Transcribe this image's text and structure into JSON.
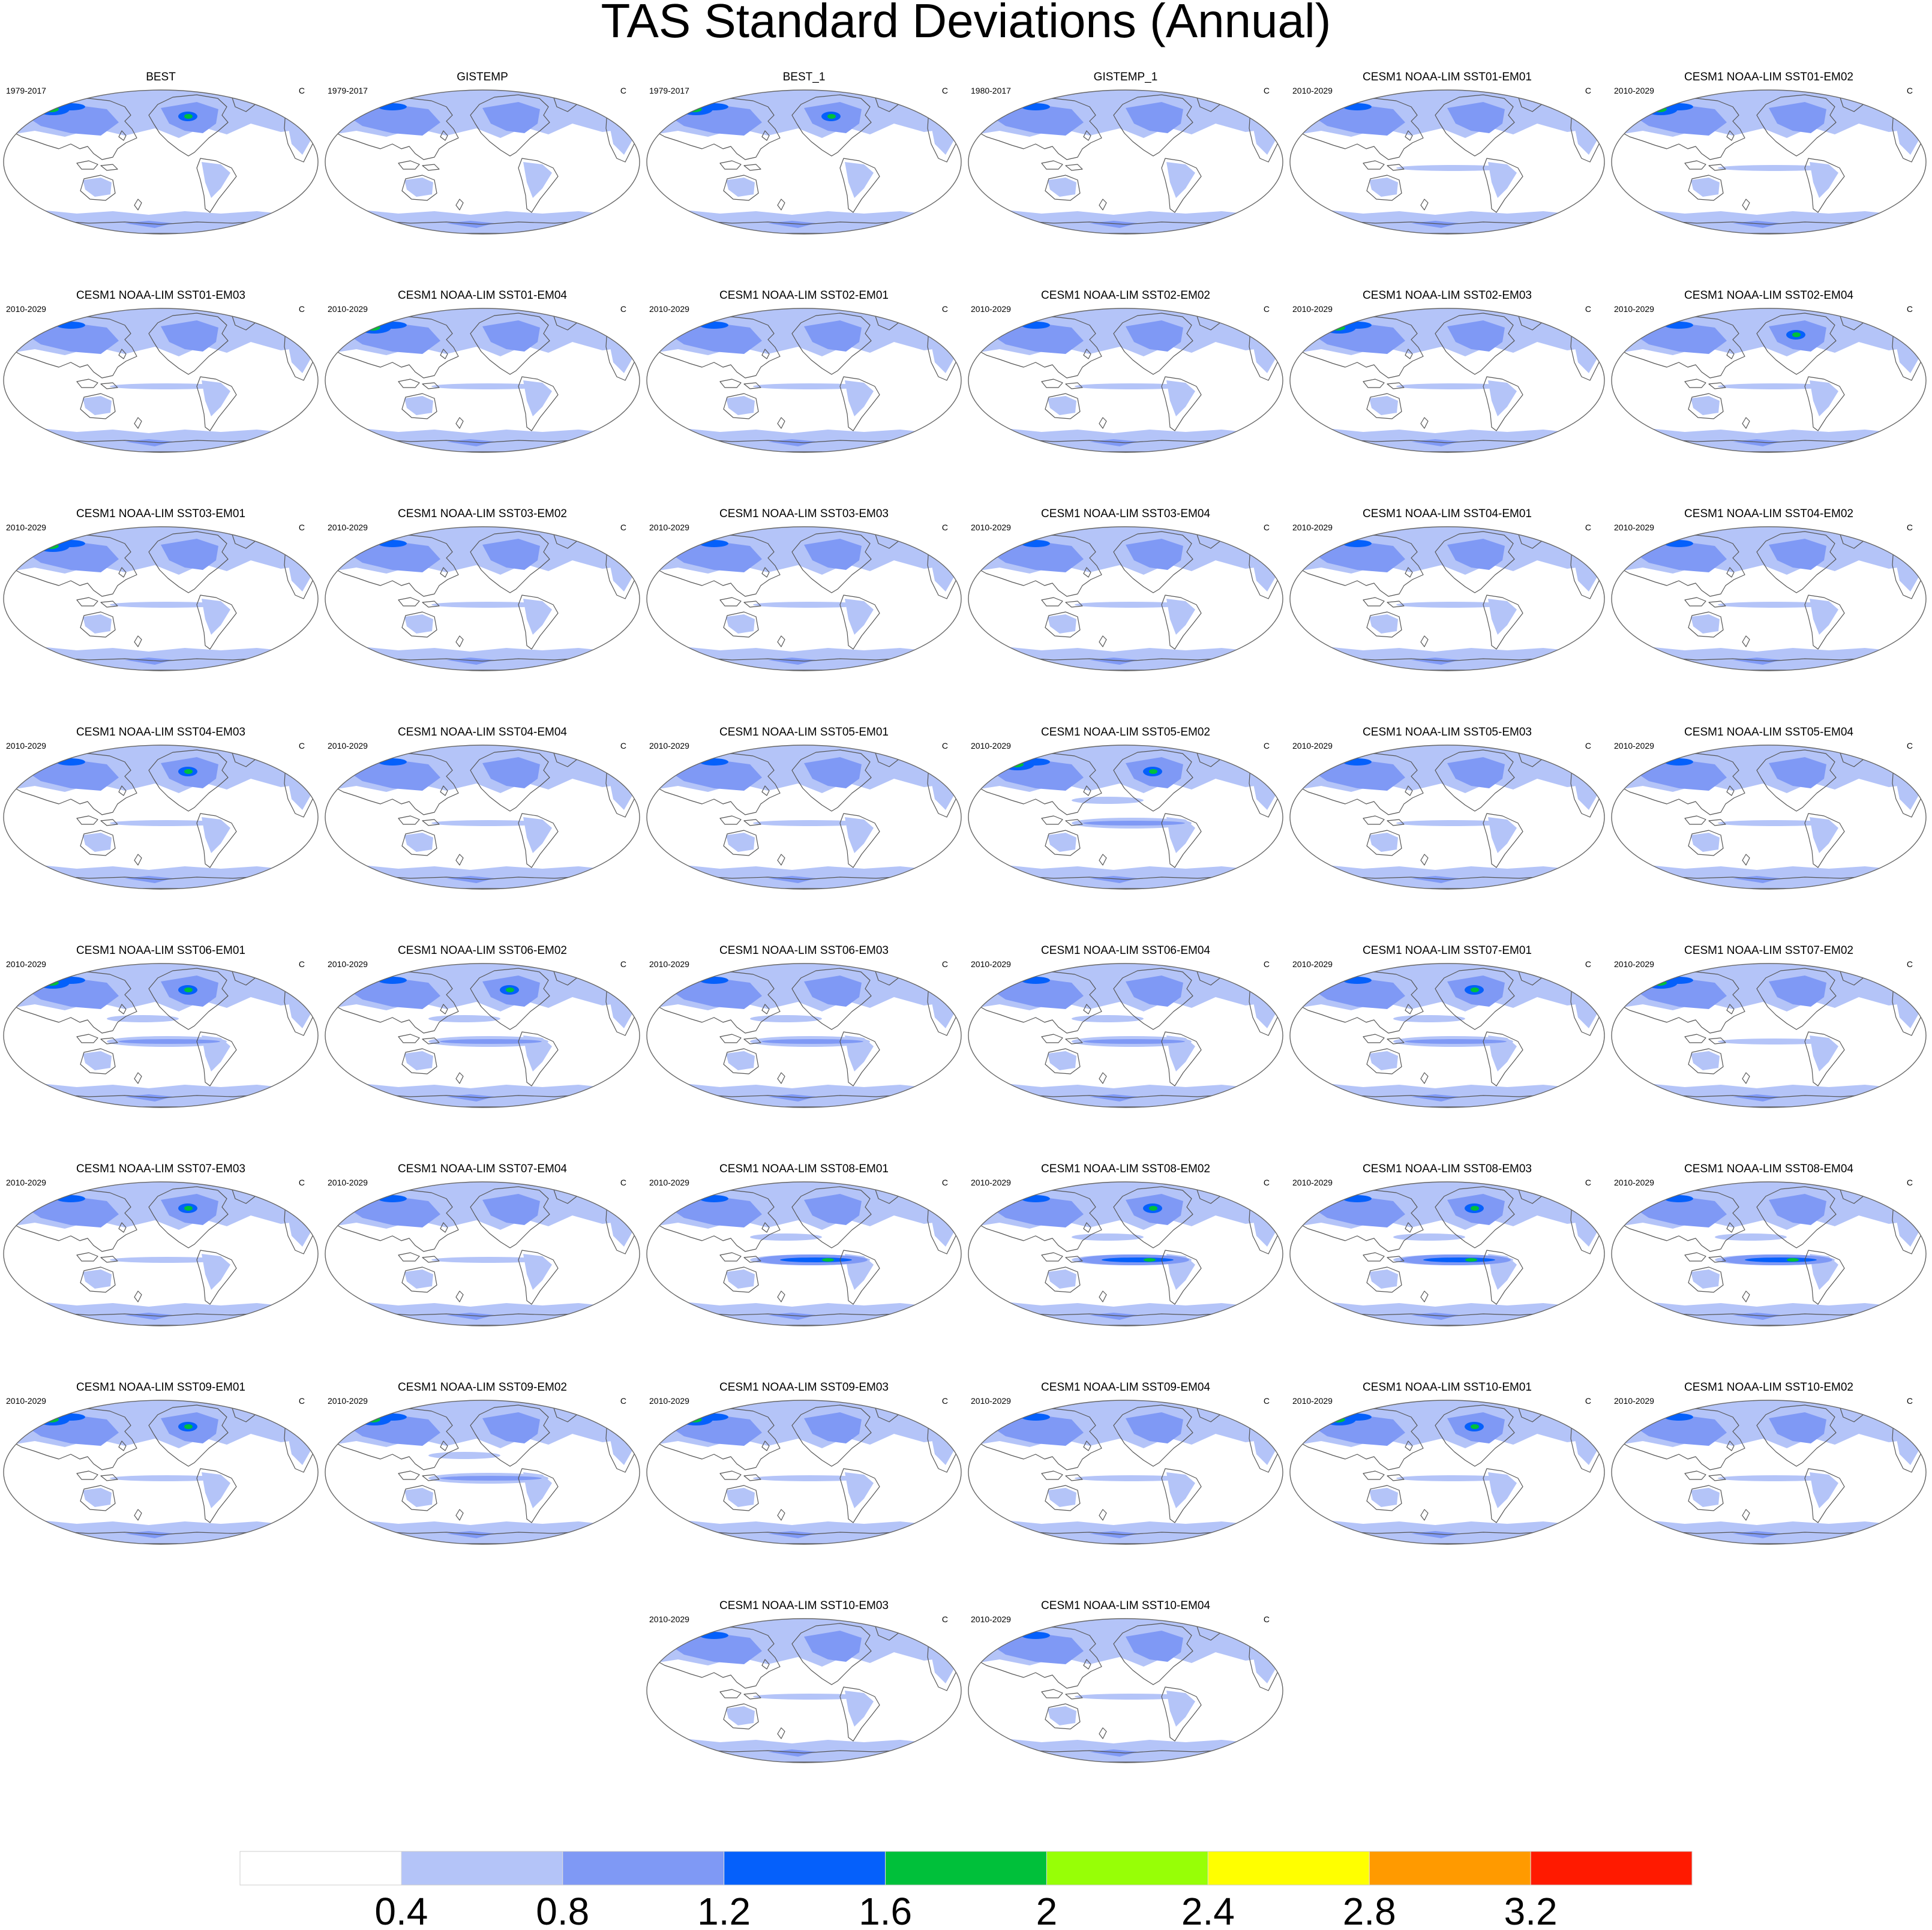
{
  "title": "TAS Standard Deviations (Annual)",
  "colors": {
    "bins": [
      "#ffffff",
      "#b4c4f8",
      "#7f99f5",
      "#0560fb",
      "#00c03a",
      "#97ff06",
      "#ffff00",
      "#ff9a00",
      "#ff1a00"
    ],
    "coast": "#555555",
    "frame": "#666666"
  },
  "colorbar": {
    "labels": [
      "0.4",
      "0.8",
      "1.2",
      "1.6",
      "2",
      "2.4",
      "2.8",
      "3.2"
    ]
  },
  "chart_data": {
    "type": "heatmap",
    "title": "TAS Standard Deviations (Annual)",
    "units": "C",
    "levels": [
      0.4,
      0.8,
      1.2,
      1.6,
      2,
      2.4,
      2.8,
      3.2
    ],
    "panels": [
      {
        "name": "BEST",
        "period": "1979-2017",
        "units": "C",
        "enso": 0,
        "polar": 1.0,
        "hot": "siberia+canada"
      },
      {
        "name": "GISTEMP",
        "period": "1979-2017",
        "units": "C",
        "enso": 0,
        "polar": 0.8,
        "hot": ""
      },
      {
        "name": "BEST_1",
        "period": "1979-2017",
        "units": "C",
        "enso": 0,
        "polar": 1.0,
        "hot": "siberia+canada"
      },
      {
        "name": "GISTEMP_1",
        "period": "1980-2017",
        "units": "C",
        "enso": 0,
        "polar": 0.8,
        "hot": ""
      },
      {
        "name": "CESM1 NOAA-LIM SST01-EM01",
        "period": "2010-2029",
        "units": "C",
        "enso": 1,
        "polar": 1.0,
        "hot": ""
      },
      {
        "name": "CESM1 NOAA-LIM SST01-EM02",
        "period": "2010-2029",
        "units": "C",
        "enso": 1,
        "polar": 1.0,
        "hot": "siberia"
      },
      {
        "name": "CESM1 NOAA-LIM SST01-EM03",
        "period": "2010-2029",
        "units": "C",
        "enso": 1,
        "polar": 1.0,
        "hot": ""
      },
      {
        "name": "CESM1 NOAA-LIM SST01-EM04",
        "period": "2010-2029",
        "units": "C",
        "enso": 1,
        "polar": 1.0,
        "hot": "siberia"
      },
      {
        "name": "CESM1 NOAA-LIM SST02-EM01",
        "period": "2010-2029",
        "units": "C",
        "enso": 1,
        "polar": 1.0,
        "hot": ""
      },
      {
        "name": "CESM1 NOAA-LIM SST02-EM02",
        "period": "2010-2029",
        "units": "C",
        "enso": 1,
        "polar": 1.0,
        "hot": ""
      },
      {
        "name": "CESM1 NOAA-LIM SST02-EM03",
        "period": "2010-2029",
        "units": "C",
        "enso": 1,
        "polar": 1.0,
        "hot": "siberia"
      },
      {
        "name": "CESM1 NOAA-LIM SST02-EM04",
        "period": "2010-2029",
        "units": "C",
        "enso": 1,
        "polar": 1.0,
        "hot": "canada"
      },
      {
        "name": "CESM1 NOAA-LIM SST03-EM01",
        "period": "2010-2029",
        "units": "C",
        "enso": 1,
        "polar": 1.0,
        "hot": "siberia"
      },
      {
        "name": "CESM1 NOAA-LIM SST03-EM02",
        "period": "2010-2029",
        "units": "C",
        "enso": 1,
        "polar": 1.0,
        "hot": ""
      },
      {
        "name": "CESM1 NOAA-LIM SST03-EM03",
        "period": "2010-2029",
        "units": "C",
        "enso": 1,
        "polar": 1.0,
        "hot": ""
      },
      {
        "name": "CESM1 NOAA-LIM SST03-EM04",
        "period": "2010-2029",
        "units": "C",
        "enso": 1,
        "polar": 1.0,
        "hot": ""
      },
      {
        "name": "CESM1 NOAA-LIM SST04-EM01",
        "period": "2010-2029",
        "units": "C",
        "enso": 1,
        "polar": 1.0,
        "hot": ""
      },
      {
        "name": "CESM1 NOAA-LIM SST04-EM02",
        "period": "2010-2029",
        "units": "C",
        "enso": 1,
        "polar": 1.0,
        "hot": ""
      },
      {
        "name": "CESM1 NOAA-LIM SST04-EM03",
        "period": "2010-2029",
        "units": "C",
        "enso": 1,
        "polar": 1.0,
        "hot": "canada"
      },
      {
        "name": "CESM1 NOAA-LIM SST04-EM04",
        "period": "2010-2029",
        "units": "C",
        "enso": 1,
        "polar": 1.0,
        "hot": ""
      },
      {
        "name": "CESM1 NOAA-LIM SST05-EM01",
        "period": "2010-2029",
        "units": "C",
        "enso": 1,
        "polar": 1.0,
        "hot": ""
      },
      {
        "name": "CESM1 NOAA-LIM SST05-EM02",
        "period": "2010-2029",
        "units": "C",
        "enso": 2,
        "polar": 1.0,
        "hot": "siberia+canada"
      },
      {
        "name": "CESM1 NOAA-LIM SST05-EM03",
        "period": "2010-2029",
        "units": "C",
        "enso": 1,
        "polar": 1.0,
        "hot": ""
      },
      {
        "name": "CESM1 NOAA-LIM SST05-EM04",
        "period": "2010-2029",
        "units": "C",
        "enso": 1,
        "polar": 1.0,
        "hot": ""
      },
      {
        "name": "CESM1 NOAA-LIM SST06-EM01",
        "period": "2010-2029",
        "units": "C",
        "enso": 2,
        "polar": 1.0,
        "hot": "siberia+canada"
      },
      {
        "name": "CESM1 NOAA-LIM SST06-EM02",
        "period": "2010-2029",
        "units": "C",
        "enso": 2,
        "polar": 1.0,
        "hot": "canada"
      },
      {
        "name": "CESM1 NOAA-LIM SST06-EM03",
        "period": "2010-2029",
        "units": "C",
        "enso": 2,
        "polar": 1.0,
        "hot": ""
      },
      {
        "name": "CESM1 NOAA-LIM SST06-EM04",
        "period": "2010-2029",
        "units": "C",
        "enso": 2,
        "polar": 1.0,
        "hot": ""
      },
      {
        "name": "CESM1 NOAA-LIM SST07-EM01",
        "period": "2010-2029",
        "units": "C",
        "enso": 2,
        "polar": 1.0,
        "hot": "canada"
      },
      {
        "name": "CESM1 NOAA-LIM SST07-EM02",
        "period": "2010-2029",
        "units": "C",
        "enso": 1,
        "polar": 1.0,
        "hot": "siberia"
      },
      {
        "name": "CESM1 NOAA-LIM SST07-EM03",
        "period": "2010-2029",
        "units": "C",
        "enso": 1,
        "polar": 1.0,
        "hot": "canada"
      },
      {
        "name": "CESM1 NOAA-LIM SST07-EM04",
        "period": "2010-2029",
        "units": "C",
        "enso": 1,
        "polar": 1.0,
        "hot": ""
      },
      {
        "name": "CESM1 NOAA-LIM SST08-EM01",
        "period": "2010-2029",
        "units": "C",
        "enso": 3,
        "polar": 1.0,
        "hot": ""
      },
      {
        "name": "CESM1 NOAA-LIM SST08-EM02",
        "period": "2010-2029",
        "units": "C",
        "enso": 3,
        "polar": 1.0,
        "hot": "canada"
      },
      {
        "name": "CESM1 NOAA-LIM SST08-EM03",
        "period": "2010-2029",
        "units": "C",
        "enso": 3,
        "polar": 1.0,
        "hot": "canada"
      },
      {
        "name": "CESM1 NOAA-LIM SST08-EM04",
        "period": "2010-2029",
        "units": "C",
        "enso": 3,
        "polar": 1.0,
        "hot": ""
      },
      {
        "name": "CESM1 NOAA-LIM SST09-EM01",
        "period": "2010-2029",
        "units": "C",
        "enso": 1,
        "polar": 1.0,
        "hot": "siberia+canada"
      },
      {
        "name": "CESM1 NOAA-LIM SST09-EM02",
        "period": "2010-2029",
        "units": "C",
        "enso": 2,
        "polar": 1.0,
        "hot": "siberia"
      },
      {
        "name": "CESM1 NOAA-LIM SST09-EM03",
        "period": "2010-2029",
        "units": "C",
        "enso": 1,
        "polar": 1.0,
        "hot": "siberia"
      },
      {
        "name": "CESM1 NOAA-LIM SST09-EM04",
        "period": "2010-2029",
        "units": "C",
        "enso": 1,
        "polar": 1.0,
        "hot": ""
      },
      {
        "name": "CESM1 NOAA-LIM SST10-EM01",
        "period": "2010-2029",
        "units": "C",
        "enso": 1,
        "polar": 1.0,
        "hot": "siberia+canada"
      },
      {
        "name": "CESM1 NOAA-LIM SST10-EM02",
        "period": "2010-2029",
        "units": "C",
        "enso": 1,
        "polar": 1.0,
        "hot": ""
      },
      {
        "name": "CESM1 NOAA-LIM SST10-EM03",
        "period": "2010-2029",
        "units": "C",
        "enso": 1,
        "polar": 1.0,
        "hot": ""
      },
      {
        "name": "CESM1 NOAA-LIM SST10-EM04",
        "period": "2010-2029",
        "units": "C",
        "enso": 1,
        "polar": 1.0,
        "hot": ""
      }
    ]
  }
}
